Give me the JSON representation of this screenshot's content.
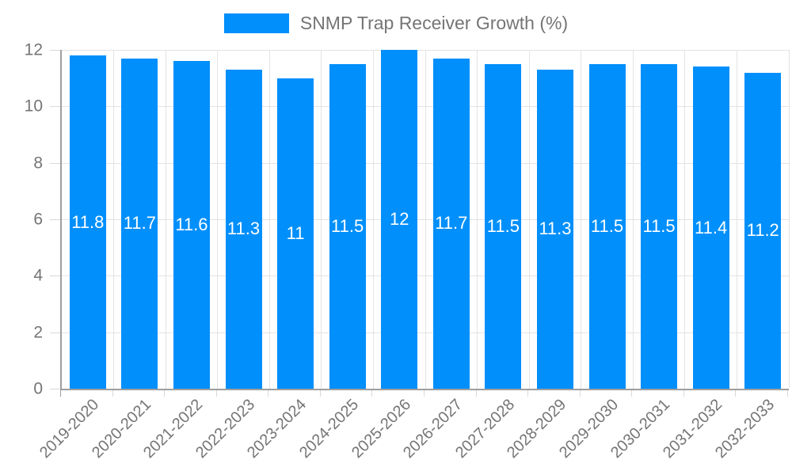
{
  "legend": {
    "label": "SNMP Trap Receiver Growth (%)"
  },
  "colors": {
    "bar": "#008FFB",
    "gridline": "#e3e3e3",
    "axis_line": "#9e9e9e",
    "tick_text": "#757575",
    "legend_text": "#757575",
    "bar_value_text": "#ffffff",
    "background": "#ffffff"
  },
  "chart_data": {
    "type": "bar",
    "title": "SNMP Trap Receiver Growth (%)",
    "series_name": "SNMP Trap Receiver Growth (%)",
    "categories": [
      "2019-2020",
      "2020-2021",
      "2021-2022",
      "2022-2023",
      "2023-2024",
      "2024-2025",
      "2025-2026",
      "2026-2027",
      "2027-2028",
      "2028-2029",
      "2029-2030",
      "2030-2031",
      "2031-2032",
      "2032-2033"
    ],
    "values": [
      11.8,
      11.7,
      11.6,
      11.3,
      11,
      11.5,
      12,
      11.7,
      11.5,
      11.3,
      11.5,
      11.5,
      11.4,
      11.2
    ],
    "data_labels": [
      "11.8",
      "11.7",
      "11.6",
      "11.3",
      "11",
      "11.5",
      "12",
      "11.7",
      "11.5",
      "11.3",
      "11.5",
      "11.5",
      "11.4",
      "11.2"
    ],
    "xlabel": "",
    "ylabel": "",
    "ylim": [
      0,
      12
    ],
    "yticks": [
      0,
      2,
      4,
      6,
      8,
      10,
      12
    ],
    "grid": true,
    "legend_position": "top",
    "x_label_rotation_deg": -45,
    "data_label_position": "center-of-bar"
  }
}
